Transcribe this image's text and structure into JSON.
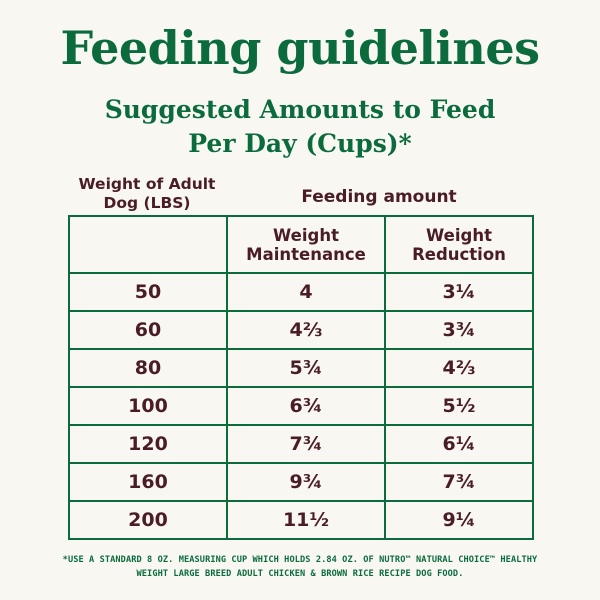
{
  "title": "Feeding guidelines",
  "subtitle": {
    "line1": "Suggested Amounts to Feed",
    "line2": "Per Day (Cups)*"
  },
  "headers": {
    "weight_line1": "Weight of Adult",
    "weight_line2": "Dog (LBS)",
    "feeding_amount": "Feeding amount",
    "maintenance_line1": "Weight",
    "maintenance_line2": "Maintenance",
    "reduction_line1": "Weight",
    "reduction_line2": "Reduction"
  },
  "rows": [
    {
      "weight": "50",
      "maintenance": "4",
      "reduction": "3¼"
    },
    {
      "weight": "60",
      "maintenance": "4⅔",
      "reduction": "3¾"
    },
    {
      "weight": "80",
      "maintenance": "5¾",
      "reduction": "4⅔"
    },
    {
      "weight": "100",
      "maintenance": "6¾",
      "reduction": "5½"
    },
    {
      "weight": "120",
      "maintenance": "7¾",
      "reduction": "6¼"
    },
    {
      "weight": "160",
      "maintenance": "9¾",
      "reduction": "7¾"
    },
    {
      "weight": "200",
      "maintenance": "11½",
      "reduction": "9¼"
    }
  ],
  "footnote": {
    "line1": "*USE A STANDARD 8 OZ. MEASURING CUP WHICH HOLDS 2.84 OZ. OF NUTRO™ NATURAL CHOICE™ HEALTHY",
    "line2": "WEIGHT LARGE BREED ADULT CHICKEN & BROWN RICE RECIPE DOG FOOD."
  },
  "colors": {
    "accent_green": "#0b6b3d",
    "text_brown": "#4a1d24",
    "background": "#f8f7f2"
  }
}
